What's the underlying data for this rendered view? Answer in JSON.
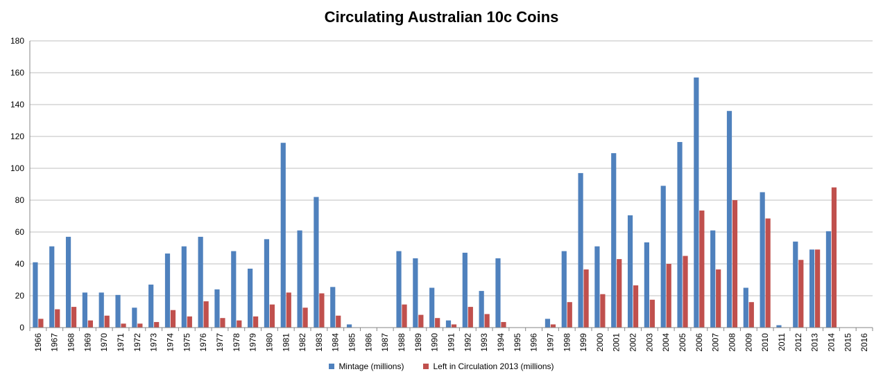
{
  "chart_data": {
    "type": "bar",
    "title": "Circulating Australian 10c Coins",
    "xlabel": "",
    "ylabel": "",
    "ylim": [
      0,
      180
    ],
    "yticks": [
      0,
      20,
      40,
      60,
      80,
      100,
      120,
      140,
      160,
      180
    ],
    "grid": true,
    "legend": "bottom",
    "categories": [
      "1966",
      "1967",
      "1968",
      "1969",
      "1970",
      "1971",
      "1972",
      "1973",
      "1974",
      "1975",
      "1976",
      "1977",
      "1978",
      "1979",
      "1980",
      "1981",
      "1982",
      "1983",
      "1984",
      "1985",
      "1986",
      "1987",
      "1988",
      "1989",
      "1990",
      "1991",
      "1992",
      "1993",
      "1994",
      "1995",
      "1996",
      "1997",
      "1998",
      "1999",
      "2000",
      "2001",
      "2002",
      "2003",
      "2004",
      "2005",
      "2006",
      "2007",
      "2008",
      "2009",
      "2010",
      "2011",
      "2012",
      "2013",
      "2014",
      "2015",
      "2016"
    ],
    "series": [
      {
        "name": "Mintage (millions)",
        "color": "#4F81BD",
        "values": [
          41,
          51,
          57,
          22,
          22,
          20.5,
          12.5,
          27,
          46.5,
          51,
          57,
          24,
          48,
          37,
          55.5,
          116,
          61,
          82,
          25.5,
          2,
          0,
          0,
          48,
          43.5,
          25,
          4.5,
          47,
          23,
          43.5,
          0,
          0,
          5.5,
          48,
          97,
          51,
          109.5,
          70.5,
          53.5,
          89,
          116.5,
          157,
          61,
          136,
          25,
          85,
          1.5,
          54,
          49,
          60.5,
          0,
          0
        ]
      },
      {
        "name": "Left in Circulation 2013 (millions)",
        "color": "#C0504D",
        "values": [
          5.5,
          11.5,
          13,
          4.5,
          7.5,
          2.5,
          2.5,
          3.5,
          11,
          7,
          16.5,
          6,
          4.5,
          7,
          14.5,
          22,
          12.5,
          21.5,
          7.5,
          0,
          0,
          0,
          14.5,
          8,
          6,
          2,
          13,
          8.5,
          3.5,
          0,
          0,
          2,
          16,
          36.5,
          21,
          43,
          26.5,
          17.5,
          40,
          45,
          73.5,
          36.5,
          80,
          16,
          68.5,
          0,
          42.5,
          49,
          88,
          0,
          0
        ]
      }
    ]
  }
}
